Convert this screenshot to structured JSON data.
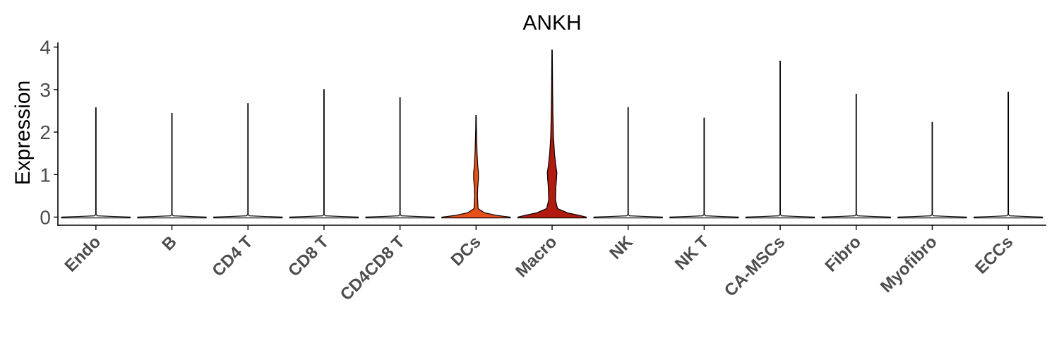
{
  "chart_data": {
    "type": "violin",
    "title": "ANKH",
    "xlabel": "",
    "ylabel": "Expression",
    "ylim": [
      -0.2,
      4.1
    ],
    "yticks": [
      0,
      1,
      2,
      3,
      4
    ],
    "grid": false,
    "legend": "none",
    "categories": [
      "Endo",
      "B",
      "CD4 T",
      "CD8 T",
      "CD4CD8 T",
      "DCs",
      "Macro",
      "NK",
      "NK T",
      "CA-MSCs",
      "Fibro",
      "Myofibro",
      "ECCs"
    ],
    "max_values": [
      2.57,
      2.44,
      2.67,
      3.0,
      2.81,
      2.39,
      3.93,
      2.58,
      2.33,
      3.67,
      2.89,
      2.23,
      2.94
    ],
    "fill_colors": [
      "#ffffff",
      "#ffffff",
      "#ffffff",
      "#ffffff",
      "#ffffff",
      "#e8501a",
      "#b01a0f",
      "#ffffff",
      "#ffffff",
      "#ffffff",
      "#ffffff",
      "#ffffff",
      "#ffffff"
    ],
    "density_profiles": [
      [],
      [],
      [],
      [],
      [],
      [
        [
          0.0,
          1.0
        ],
        [
          0.04,
          0.6
        ],
        [
          0.1,
          0.25
        ],
        [
          0.2,
          0.06
        ],
        [
          0.5,
          0.04
        ],
        [
          0.7,
          0.05
        ],
        [
          0.9,
          0.07
        ],
        [
          1.05,
          0.07
        ],
        [
          1.2,
          0.05
        ],
        [
          1.5,
          0.03
        ],
        [
          1.8,
          0.02
        ],
        [
          2.1,
          0.01
        ]
      ],
      [
        [
          0.0,
          1.0
        ],
        [
          0.04,
          0.8
        ],
        [
          0.1,
          0.45
        ],
        [
          0.2,
          0.16
        ],
        [
          0.4,
          0.1
        ],
        [
          0.7,
          0.11
        ],
        [
          0.9,
          0.13
        ],
        [
          1.05,
          0.14
        ],
        [
          1.2,
          0.11
        ],
        [
          1.5,
          0.07
        ],
        [
          1.9,
          0.04
        ],
        [
          2.4,
          0.025
        ],
        [
          3.0,
          0.015
        ]
      ],
      [],
      [],
      [],
      [],
      [],
      []
    ]
  }
}
